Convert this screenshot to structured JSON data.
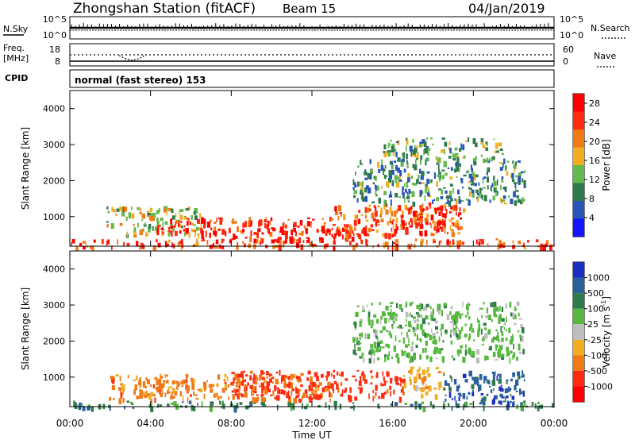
{
  "header": {
    "station": "Zhongshan Station (fitACF)",
    "beam": "Beam 15",
    "date": "04/Jan/2019"
  },
  "top_panels": {
    "nsky_label": "N.Sky",
    "nsearch_label": "N.Search",
    "noise_ticks_left": [
      "10^5",
      "10^0"
    ],
    "noise_ticks_right": [
      "10^5",
      "10^0"
    ],
    "freq_label_1": "Freq.",
    "freq_label_2": "[MHz]",
    "freq_ticks": [
      "18",
      "8"
    ],
    "nave_label": "Nave",
    "nave_ticks": [
      "60",
      "0"
    ],
    "cpid_label": "CPID",
    "cpid_text": "normal (fast stereo) 153"
  },
  "chart_data": [
    {
      "type": "heatmap",
      "title": "",
      "xlabel": "Time UT",
      "ylabel": "Slant Range [km]",
      "xlim": [
        0,
        24
      ],
      "ylim": [
        180,
        4500
      ],
      "x_ticks": [
        "00:00",
        "04:00",
        "08:00",
        "12:00",
        "16:00",
        "20:00",
        "00:00"
      ],
      "y_ticks": [
        "1000",
        "2000",
        "3000",
        "4000"
      ],
      "colorbar": {
        "label": "Power [dB]",
        "ticks": [
          "4",
          "8",
          "12",
          "16",
          "20",
          "24",
          "28"
        ],
        "range": [
          0,
          30
        ],
        "colors": [
          "#1414ff",
          "#2a55b8",
          "#2f7a4a",
          "#63b94c",
          "#f2ad1f",
          "#f07a16",
          "#ff2a10",
          "#ff0000"
        ]
      },
      "echo_regions": [
        {
          "t0": 0.0,
          "t1": 24.0,
          "r0": 180,
          "r1": 400,
          "level": 24
        },
        {
          "t0": 1.8,
          "t1": 6.5,
          "r0": 500,
          "r1": 1300,
          "level": 14
        },
        {
          "t0": 4.2,
          "t1": 13.0,
          "r0": 550,
          "r1": 1000,
          "level": 25
        },
        {
          "t0": 6.5,
          "t1": 14.0,
          "r0": 350,
          "r1": 700,
          "level": 27
        },
        {
          "t0": 13.0,
          "t1": 19.5,
          "r0": 500,
          "r1": 1400,
          "level": 22
        },
        {
          "t0": 16.0,
          "t1": 18.5,
          "r0": 600,
          "r1": 1300,
          "level": 27
        },
        {
          "t0": 14.0,
          "t1": 22.5,
          "r0": 1400,
          "r1": 2600,
          "level": 10
        },
        {
          "t0": 15.5,
          "t1": 21.5,
          "r0": 2600,
          "r1": 3200,
          "level": 12
        }
      ]
    },
    {
      "type": "heatmap",
      "title": "",
      "xlabel": "Time UT",
      "ylabel": "Slant Range [km]",
      "xlim": [
        0,
        24
      ],
      "ylim": [
        180,
        4500
      ],
      "x_ticks": [
        "00:00",
        "04:00",
        "08:00",
        "12:00",
        "16:00",
        "20:00",
        "00:00"
      ],
      "y_ticks": [
        "1000",
        "2000",
        "3000",
        "4000"
      ],
      "colorbar": {
        "label": "Velocity [m s^-1]",
        "ticks": [
          "1000",
          "500",
          "100",
          "25",
          "-25",
          "-100",
          "-500",
          "-1000"
        ],
        "colors": [
          "#1a2fbf",
          "#2a5f9e",
          "#2f7a4a",
          "#57b83f",
          "#bdbdbd",
          "#f2ad1f",
          "#f07a16",
          "#ff2a10",
          "#ff0000"
        ]
      },
      "echo_regions": [
        {
          "t0": 0.0,
          "t1": 24.0,
          "r0": 180,
          "r1": 350,
          "level": "100"
        },
        {
          "t0": 1.8,
          "t1": 13.0,
          "r0": 400,
          "r1": 1100,
          "level": "-500"
        },
        {
          "t0": 8.0,
          "t1": 16.5,
          "r0": 450,
          "r1": 1200,
          "level": "-1000"
        },
        {
          "t0": 16.5,
          "t1": 18.5,
          "r0": 500,
          "r1": 1300,
          "level": "-100"
        },
        {
          "t0": 18.5,
          "t1": 22.5,
          "r0": 300,
          "r1": 1200,
          "level": "500"
        },
        {
          "t0": 14.0,
          "t1": 22.5,
          "r0": 1500,
          "r1": 3100,
          "level": "25"
        }
      ]
    }
  ]
}
